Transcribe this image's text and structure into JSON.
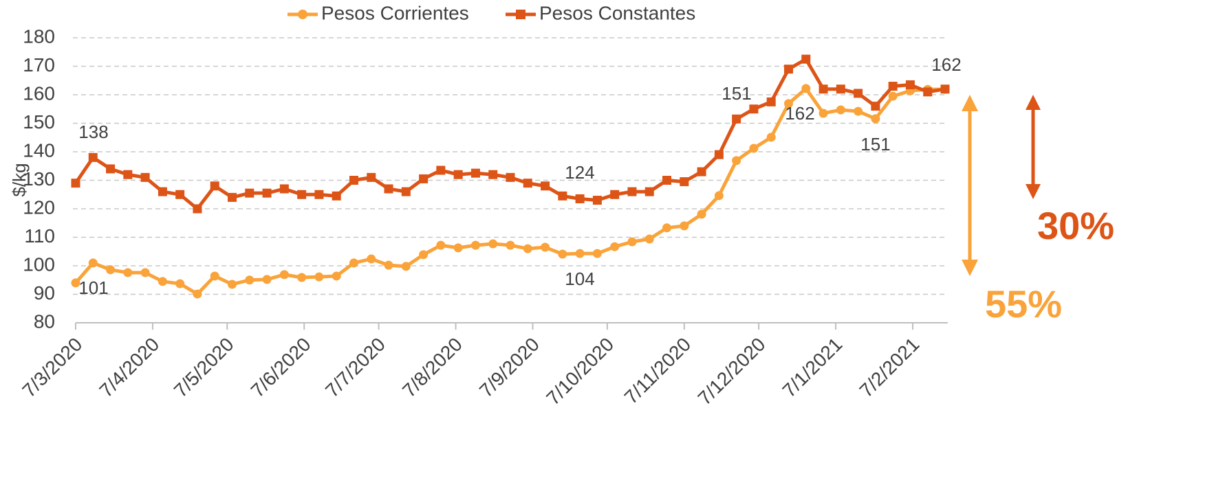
{
  "chart_data": {
    "type": "line",
    "y_label": "$/kg",
    "x": [
      "2020-03-07",
      "2020-03-14",
      "2020-03-21",
      "2020-03-28",
      "2020-04-04",
      "2020-04-11",
      "2020-04-18",
      "2020-04-25",
      "2020-05-02",
      "2020-05-09",
      "2020-05-16",
      "2020-05-23",
      "2020-05-30",
      "2020-06-06",
      "2020-06-13",
      "2020-06-20",
      "2020-06-27",
      "2020-07-04",
      "2020-07-11",
      "2020-07-18",
      "2020-07-25",
      "2020-08-01",
      "2020-08-08",
      "2020-08-15",
      "2020-08-22",
      "2020-08-29",
      "2020-09-05",
      "2020-09-12",
      "2020-09-19",
      "2020-09-26",
      "2020-10-03",
      "2020-10-10",
      "2020-10-17",
      "2020-10-24",
      "2020-10-31",
      "2020-11-07",
      "2020-11-14",
      "2020-11-21",
      "2020-11-28",
      "2020-12-05",
      "2020-12-12",
      "2020-12-19",
      "2020-12-26",
      "2021-01-02",
      "2021-01-09",
      "2021-01-16",
      "2021-01-23",
      "2021-01-30",
      "2021-02-06",
      "2021-02-13",
      "2021-02-20"
    ],
    "xlim": [
      "2020-03-07",
      "2021-02-20"
    ],
    "xticks": [
      {
        "value": "2020-03-07",
        "label": "7/3/2020"
      },
      {
        "value": "2020-04-07",
        "label": "7/4/2020"
      },
      {
        "value": "2020-05-07",
        "label": "7/5/2020"
      },
      {
        "value": "2020-06-07",
        "label": "7/6/2020"
      },
      {
        "value": "2020-07-07",
        "label": "7/7/2020"
      },
      {
        "value": "2020-08-07",
        "label": "7/8/2020"
      },
      {
        "value": "2020-09-07",
        "label": "7/9/2020"
      },
      {
        "value": "2020-10-07",
        "label": "7/10/2020"
      },
      {
        "value": "2020-11-07",
        "label": "7/11/2020"
      },
      {
        "value": "2020-12-07",
        "label": "7/12/2020"
      },
      {
        "value": "2021-01-07",
        "label": "7/1/2021"
      },
      {
        "value": "2021-02-07",
        "label": "7/2/2021"
      }
    ],
    "ylim": [
      80,
      180
    ],
    "yticks": [
      80,
      90,
      100,
      110,
      120,
      130,
      140,
      150,
      160,
      170,
      180
    ],
    "grid": true,
    "legend": "top",
    "series": [
      {
        "name": "Pesos Corrientes",
        "color": "#f9a33a",
        "marker": "circle",
        "values": [
          94,
          101,
          98.6,
          97.6,
          97.6,
          94.5,
          93.7,
          90.1,
          96.4,
          93.5,
          95,
          95.2,
          96.9,
          95.9,
          96.1,
          96.4,
          101,
          102.4,
          100.2,
          99.8,
          103.9,
          107.2,
          106.3,
          107.2,
          107.7,
          107.2,
          106,
          106.5,
          104.1,
          104.3,
          104.3,
          106.7,
          108.4,
          109.4,
          113.3,
          114,
          118.1,
          124.6,
          136.9,
          141.2,
          145.1,
          156.9,
          162.2,
          153.5,
          154.7,
          154.2,
          151.6,
          159.5,
          161.4,
          161.9,
          161.9
        ]
      },
      {
        "name": "Pesos Constantes",
        "color": "#dd5417",
        "marker": "square",
        "values": [
          129,
          138,
          134,
          132,
          131,
          126,
          125,
          120,
          128,
          124,
          125.5,
          125.5,
          127,
          125,
          125,
          124.5,
          130,
          131,
          127,
          126,
          130.5,
          133.5,
          132,
          132.5,
          132,
          131,
          129,
          128,
          124.5,
          123.5,
          123,
          125,
          126,
          126,
          130,
          129.5,
          133,
          139,
          151.5,
          155,
          157.5,
          169,
          172.5,
          162,
          162,
          160.5,
          156,
          163,
          163.5,
          161,
          162
        ]
      }
    ],
    "annotations": [
      "138",
      "101",
      "124",
      "104",
      "151",
      "162",
      "151",
      "162",
      "30%",
      "55%"
    ]
  }
}
